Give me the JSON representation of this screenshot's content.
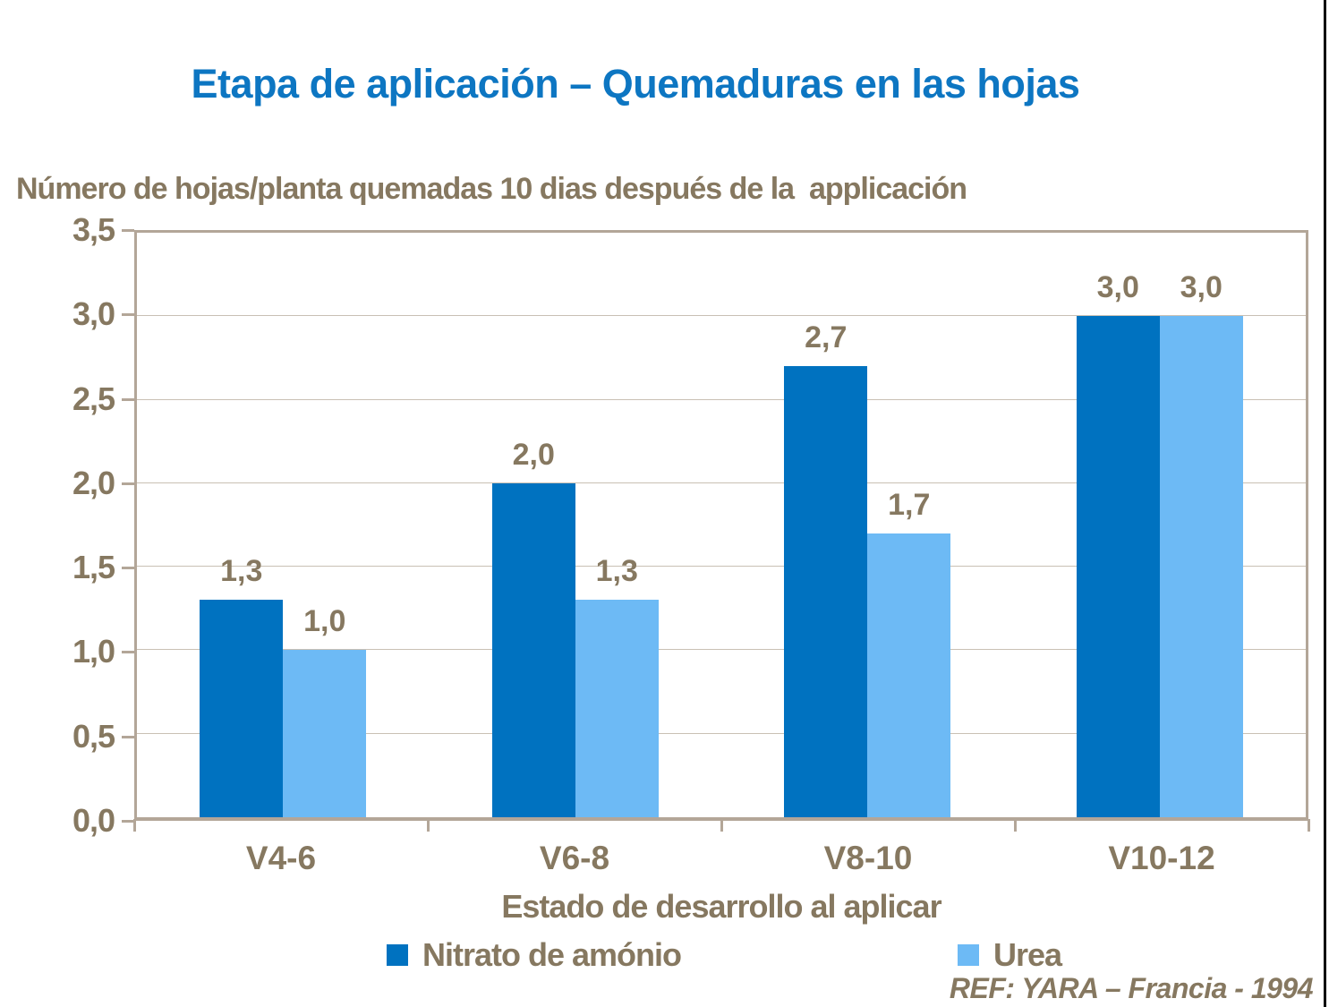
{
  "header": {
    "title": "Etapa de aplicación – Quemaduras en las hojas",
    "title_color": "#0d76c2"
  },
  "colors": {
    "text_brown": "#867860",
    "axis_border": "#b3a698",
    "gridline": "#c9c0b4",
    "series_dark_blue": "#0072c0",
    "series_light_blue": "#6dbaf5"
  },
  "footer": {
    "reference": "REF: YARA – Francia - 1994"
  },
  "chart_data": {
    "type": "bar",
    "title": "Etapa de aplicación – Quemaduras en las hojas",
    "subtitle": "Número de hojas/planta quemadas 10 dias después de la  applicación",
    "categories": [
      "V4-6",
      "V6-8",
      "V8-10",
      "V10-12"
    ],
    "series": [
      {
        "name": "Nitrato de amónio",
        "color": "#0072c0",
        "values": [
          1.3,
          2.0,
          2.7,
          3.0
        ],
        "labels": [
          "1,3",
          "2,0",
          "2,7",
          "3,0"
        ]
      },
      {
        "name": "Urea",
        "color": "#6dbaf5",
        "values": [
          1.0,
          1.3,
          1.7,
          3.0
        ],
        "labels": [
          "1,0",
          "1,3",
          "1,7",
          "3,0"
        ]
      }
    ],
    "xlabel": "Estado de desarrollo al aplicar",
    "ylabel": "",
    "ylim": [
      0,
      3.5
    ],
    "ytick_step": 0.5,
    "ytick_labels": [
      "0,0",
      "0,5",
      "1,0",
      "1,5",
      "2,0",
      "2,5",
      "3,0",
      "3,5"
    ],
    "grid": true,
    "legend_position": "bottom",
    "reference": "REF: YARA – Francia - 1994"
  }
}
